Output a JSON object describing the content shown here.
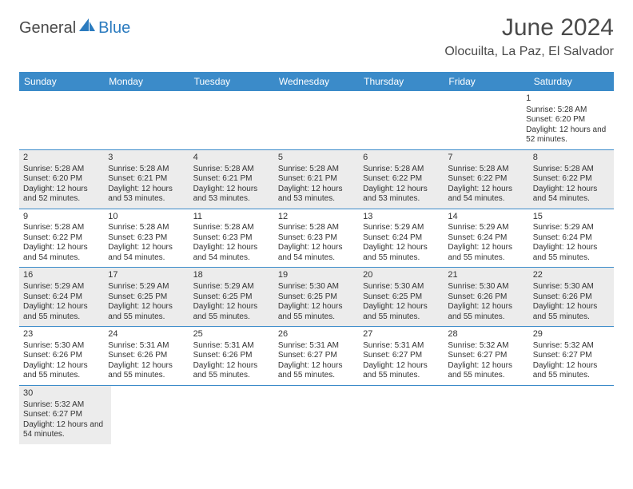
{
  "logo": {
    "general": "General",
    "blue": "Blue"
  },
  "header": {
    "title": "June 2024",
    "location": "Olocuilta, La Paz, El Salvador"
  },
  "colors": {
    "header_bar": "#3b8bc9",
    "header_text": "#ffffff",
    "shaded_cell": "#ececec",
    "row_border": "#3b8bc9",
    "body_text": "#333333",
    "logo_blue": "#2b7bbf",
    "logo_gray": "#4a4a4a"
  },
  "day_names": [
    "Sunday",
    "Monday",
    "Tuesday",
    "Wednesday",
    "Thursday",
    "Friday",
    "Saturday"
  ],
  "calendar": {
    "type": "table",
    "weeks": [
      [
        null,
        null,
        null,
        null,
        null,
        null,
        {
          "n": "1",
          "sr": "5:28 AM",
          "ss": "6:20 PM",
          "dl": "12 hours and 52 minutes."
        }
      ],
      [
        {
          "n": "2",
          "sr": "5:28 AM",
          "ss": "6:20 PM",
          "dl": "12 hours and 52 minutes."
        },
        {
          "n": "3",
          "sr": "5:28 AM",
          "ss": "6:21 PM",
          "dl": "12 hours and 53 minutes."
        },
        {
          "n": "4",
          "sr": "5:28 AM",
          "ss": "6:21 PM",
          "dl": "12 hours and 53 minutes."
        },
        {
          "n": "5",
          "sr": "5:28 AM",
          "ss": "6:21 PM",
          "dl": "12 hours and 53 minutes."
        },
        {
          "n": "6",
          "sr": "5:28 AM",
          "ss": "6:22 PM",
          "dl": "12 hours and 53 minutes."
        },
        {
          "n": "7",
          "sr": "5:28 AM",
          "ss": "6:22 PM",
          "dl": "12 hours and 54 minutes."
        },
        {
          "n": "8",
          "sr": "5:28 AM",
          "ss": "6:22 PM",
          "dl": "12 hours and 54 minutes."
        }
      ],
      [
        {
          "n": "9",
          "sr": "5:28 AM",
          "ss": "6:22 PM",
          "dl": "12 hours and 54 minutes."
        },
        {
          "n": "10",
          "sr": "5:28 AM",
          "ss": "6:23 PM",
          "dl": "12 hours and 54 minutes."
        },
        {
          "n": "11",
          "sr": "5:28 AM",
          "ss": "6:23 PM",
          "dl": "12 hours and 54 minutes."
        },
        {
          "n": "12",
          "sr": "5:28 AM",
          "ss": "6:23 PM",
          "dl": "12 hours and 54 minutes."
        },
        {
          "n": "13",
          "sr": "5:29 AM",
          "ss": "6:24 PM",
          "dl": "12 hours and 55 minutes."
        },
        {
          "n": "14",
          "sr": "5:29 AM",
          "ss": "6:24 PM",
          "dl": "12 hours and 55 minutes."
        },
        {
          "n": "15",
          "sr": "5:29 AM",
          "ss": "6:24 PM",
          "dl": "12 hours and 55 minutes."
        }
      ],
      [
        {
          "n": "16",
          "sr": "5:29 AM",
          "ss": "6:24 PM",
          "dl": "12 hours and 55 minutes."
        },
        {
          "n": "17",
          "sr": "5:29 AM",
          "ss": "6:25 PM",
          "dl": "12 hours and 55 minutes."
        },
        {
          "n": "18",
          "sr": "5:29 AM",
          "ss": "6:25 PM",
          "dl": "12 hours and 55 minutes."
        },
        {
          "n": "19",
          "sr": "5:30 AM",
          "ss": "6:25 PM",
          "dl": "12 hours and 55 minutes."
        },
        {
          "n": "20",
          "sr": "5:30 AM",
          "ss": "6:25 PM",
          "dl": "12 hours and 55 minutes."
        },
        {
          "n": "21",
          "sr": "5:30 AM",
          "ss": "6:26 PM",
          "dl": "12 hours and 55 minutes."
        },
        {
          "n": "22",
          "sr": "5:30 AM",
          "ss": "6:26 PM",
          "dl": "12 hours and 55 minutes."
        }
      ],
      [
        {
          "n": "23",
          "sr": "5:30 AM",
          "ss": "6:26 PM",
          "dl": "12 hours and 55 minutes."
        },
        {
          "n": "24",
          "sr": "5:31 AM",
          "ss": "6:26 PM",
          "dl": "12 hours and 55 minutes."
        },
        {
          "n": "25",
          "sr": "5:31 AM",
          "ss": "6:26 PM",
          "dl": "12 hours and 55 minutes."
        },
        {
          "n": "26",
          "sr": "5:31 AM",
          "ss": "6:27 PM",
          "dl": "12 hours and 55 minutes."
        },
        {
          "n": "27",
          "sr": "5:31 AM",
          "ss": "6:27 PM",
          "dl": "12 hours and 55 minutes."
        },
        {
          "n": "28",
          "sr": "5:32 AM",
          "ss": "6:27 PM",
          "dl": "12 hours and 55 minutes."
        },
        {
          "n": "29",
          "sr": "5:32 AM",
          "ss": "6:27 PM",
          "dl": "12 hours and 55 minutes."
        }
      ],
      [
        {
          "n": "30",
          "sr": "5:32 AM",
          "ss": "6:27 PM",
          "dl": "12 hours and 54 minutes."
        },
        null,
        null,
        null,
        null,
        null,
        null
      ]
    ]
  },
  "labels": {
    "sunrise_prefix": "Sunrise: ",
    "sunset_prefix": "Sunset: ",
    "daylight_prefix": "Daylight: "
  }
}
